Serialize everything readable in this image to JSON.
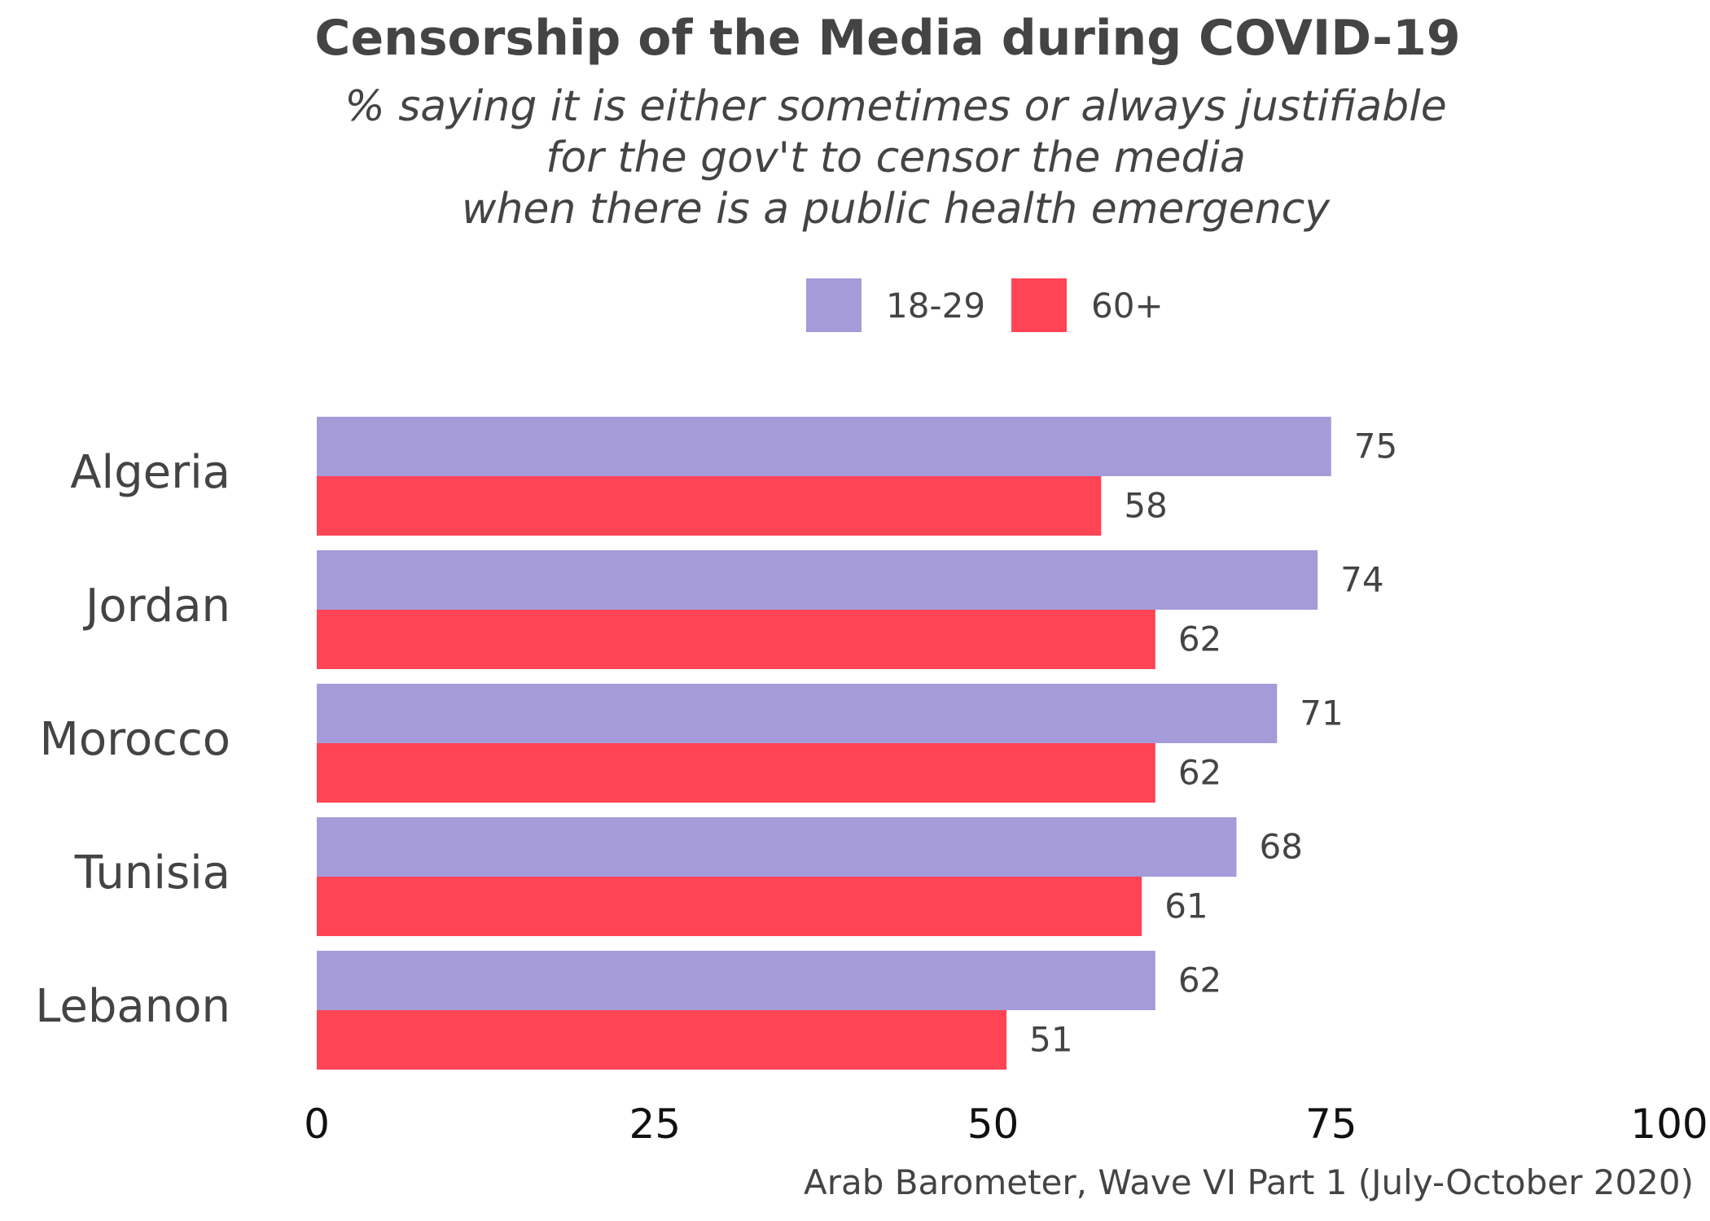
{
  "chart_data": {
    "type": "bar",
    "orientation": "horizontal",
    "title": "Censorship of the Media during COVID-19",
    "subtitle_lines": [
      "% saying it is either sometimes or always justifiable",
      "for the gov't to censor the media",
      "when there is a public health emergency"
    ],
    "categories": [
      "Algeria",
      "Jordan",
      "Morocco",
      "Tunisia",
      "Lebanon"
    ],
    "series": [
      {
        "name": "18-29",
        "color": "#a59bd8",
        "values": [
          75,
          74,
          71,
          68,
          62
        ]
      },
      {
        "name": "60+",
        "color": "#ff4455",
        "values": [
          58,
          62,
          62,
          61,
          51
        ]
      }
    ],
    "xlim": [
      0,
      100
    ],
    "x_ticks": [
      0,
      25,
      50,
      75,
      100
    ],
    "xlabel": "",
    "ylabel": "",
    "grid": false,
    "legend_position": "top",
    "data_labels": true,
    "caption": "Arab Barometer, Wave VI Part 1 (July-October 2020)"
  }
}
